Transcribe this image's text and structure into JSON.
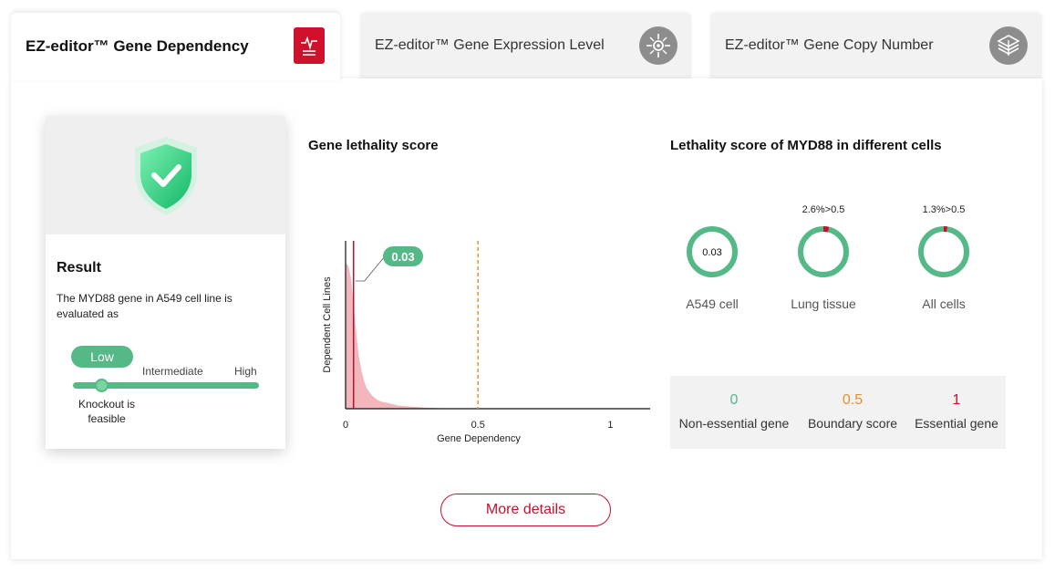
{
  "tabs": [
    {
      "label": "EZ-editor™ Gene Dependency",
      "icon": "pulse-document-icon",
      "active": true
    },
    {
      "label": "EZ-editor™ Gene Expression Level",
      "icon": "target-icon",
      "active": false
    },
    {
      "label": "EZ-editor™ Gene Copy Number",
      "icon": "layers-icon",
      "active": false
    }
  ],
  "result": {
    "title": "Result",
    "description": "The MYD88 gene in A549 cell line is evaluated as",
    "level": "Low",
    "scale": {
      "intermediate": "Intermediate",
      "high": "High"
    },
    "note": "Knockout is feasible",
    "shield_color": "#2fcf7f"
  },
  "chart_section": {
    "title": "Gene lethality score"
  },
  "chart_data": {
    "type": "area",
    "title": "Gene lethality score",
    "xlabel": "Gene Dependency",
    "ylabel": "Dependent Cell Lines",
    "xlim": [
      0,
      1.15
    ],
    "xticks": [
      "0",
      "0.5",
      "1"
    ],
    "marker": {
      "value": 0.03,
      "label": "0.03"
    },
    "threshold": 0.5,
    "distribution": {
      "x": [
        0,
        0.01,
        0.02,
        0.03,
        0.04,
        0.05,
        0.06,
        0.07,
        0.08,
        0.1,
        0.12,
        0.14,
        0.16,
        0.18,
        0.2,
        0.25,
        0.3,
        0.35,
        0.4
      ],
      "y": [
        1.0,
        0.98,
        0.9,
        0.72,
        0.52,
        0.36,
        0.26,
        0.19,
        0.14,
        0.09,
        0.06,
        0.045,
        0.04,
        0.03,
        0.022,
        0.014,
        0.008,
        0.004,
        0
      ]
    },
    "colors": {
      "fill": "#f2b6bc",
      "marker": "#b0142d",
      "threshold": "#e8902a",
      "label_bg": "#55b987"
    }
  },
  "cells_section": {
    "title": "Lethality score of MYD88 in different cells"
  },
  "donuts": [
    {
      "label": "A549 cell",
      "center": "0.03",
      "note": "",
      "fraction": 0
    },
    {
      "label": "Lung tissue",
      "center": "",
      "note": "2.6%>0.5",
      "fraction": 0.026
    },
    {
      "label": "All cells",
      "center": "",
      "note": "1.3%>0.5",
      "fraction": 0.013
    }
  ],
  "legend": [
    {
      "value": "0",
      "label": "Non-essential gene",
      "color": "#55b987"
    },
    {
      "value": "0.5",
      "label": "Boundary score",
      "color": "#e8902a"
    },
    {
      "value": "1",
      "label": "Essential gene",
      "color": "#c8102e"
    }
  ],
  "more_details": "More details",
  "colors": {
    "green": "#55b987",
    "red": "#c8102e",
    "grey": "#f2f2f2"
  }
}
